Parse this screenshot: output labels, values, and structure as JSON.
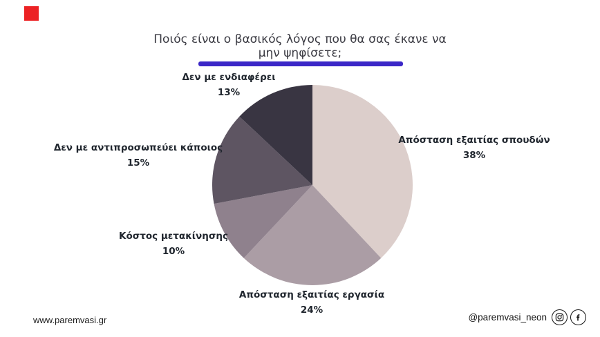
{
  "page": {
    "background": "#ffffff"
  },
  "decor": {
    "red_square_color": "#ec2224"
  },
  "title": {
    "line1": "Ποιός είναι ο βασικός λόγος που θα σας έκανε να",
    "line2": "μην ψηφίσετε;",
    "underline_color": "#3b27c7"
  },
  "chart_data": {
    "type": "pie",
    "title": "Ποιός είναι ο βασικός λόγος που θα σας έκανε να μην ψηφίσετε;",
    "start_angle_deg": 0,
    "direction": "clockwise",
    "labels_position": "outside",
    "slices": [
      {
        "label": "Απόσταση εξαιτίας σπουδών",
        "pct": 38,
        "value_label": "38%",
        "color": "#dccecb"
      },
      {
        "label": "Απόσταση εξαιτίας εργασία",
        "pct": 24,
        "value_label": "24%",
        "color": "#ab9da5"
      },
      {
        "label": "Κόστος μετακίνησης",
        "pct": 10,
        "value_label": "10%",
        "color": "#8f818d"
      },
      {
        "label": "Δεν με αντιπροσωπεύει κάποιος",
        "pct": 15,
        "value_label": "15%",
        "color": "#5e5562"
      },
      {
        "label": "Δεν με ενδιαφέρει",
        "pct": 13,
        "value_label": "13%",
        "color": "#393542"
      }
    ]
  },
  "footer": {
    "website": "www.paremvasi.gr",
    "social_handle": "@paremvasi_neon",
    "icons": [
      "instagram-icon",
      "facebook-icon"
    ]
  }
}
